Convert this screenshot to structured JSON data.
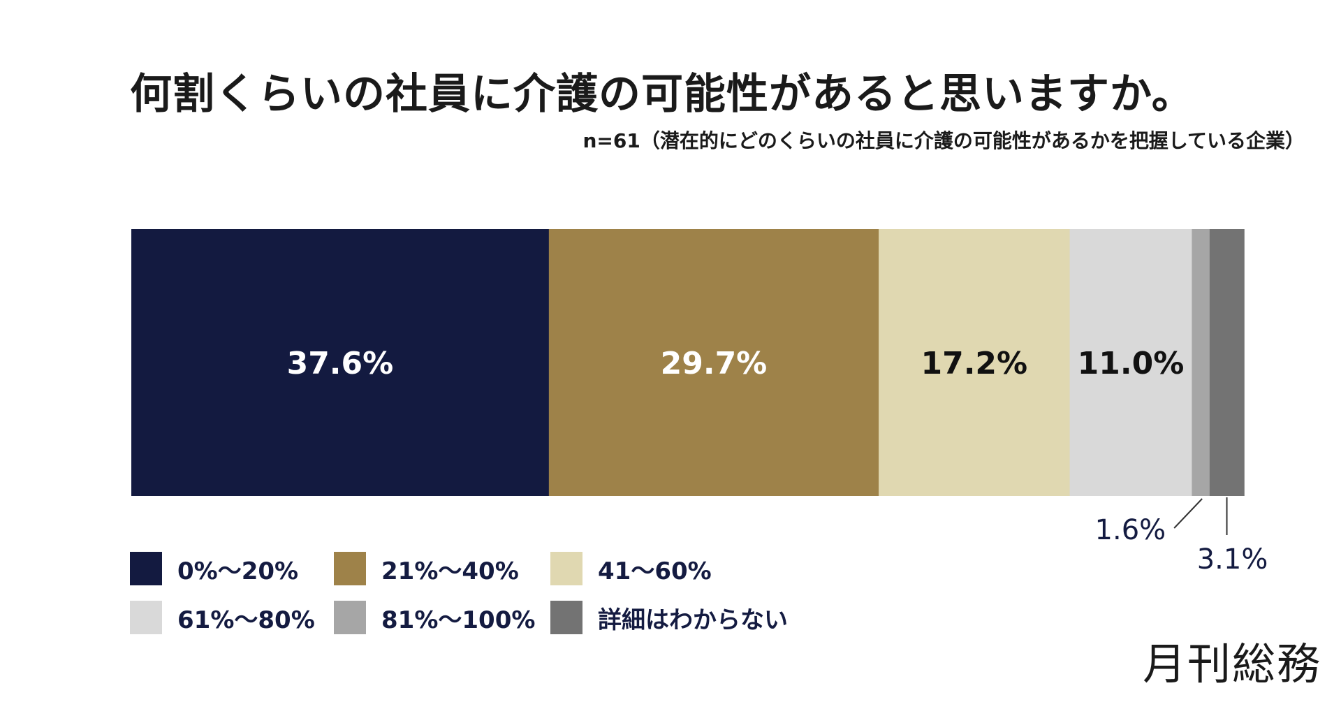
{
  "title": "何割くらいの社員に介護の可能性があると思いますか。",
  "subtitle": "n=61（潜在的にどのくらいの社員に介護の可能性があるかを把握している企業）",
  "brand": "月刊総務",
  "chart_data": {
    "type": "bar",
    "orientation": "horizontal-stacked-100",
    "title": "何割くらいの社員に介護の可能性があると思いますか。",
    "subtitle": "n=61（潜在的にどのくらいの社員に介護の可能性があるかを把握している企業）",
    "unit": "%",
    "xlim": [
      0,
      100
    ],
    "segments": [
      {
        "name": "0%〜20%",
        "value": 37.6,
        "label": "37.6%",
        "color": "#131a40",
        "label_color": "#ffffff",
        "label_position": "inside"
      },
      {
        "name": "21%〜40%",
        "value": 29.7,
        "label": "29.7%",
        "color": "#9e8249",
        "label_color": "#ffffff",
        "label_position": "inside"
      },
      {
        "name": "41〜60%",
        "value": 17.2,
        "label": "17.2%",
        "color": "#e0d8b1",
        "label_color": "#111111",
        "label_position": "inside"
      },
      {
        "name": "61%〜80%",
        "value": 11.0,
        "label": "11.0%",
        "color": "#d9d9d9",
        "label_color": "#111111",
        "label_position": "inside"
      },
      {
        "name": "81%〜100%",
        "value": 1.6,
        "label": "1.6%",
        "color": "#a6a6a6",
        "label_color": "#141b41",
        "label_position": "callout-left"
      },
      {
        "name": "詳細はわからない",
        "value": 3.1,
        "label": "3.1%",
        "color": "#737373",
        "label_color": "#141b41",
        "label_position": "callout-below"
      }
    ],
    "legend": {
      "placement": "bottom-left",
      "columns": 3
    }
  }
}
